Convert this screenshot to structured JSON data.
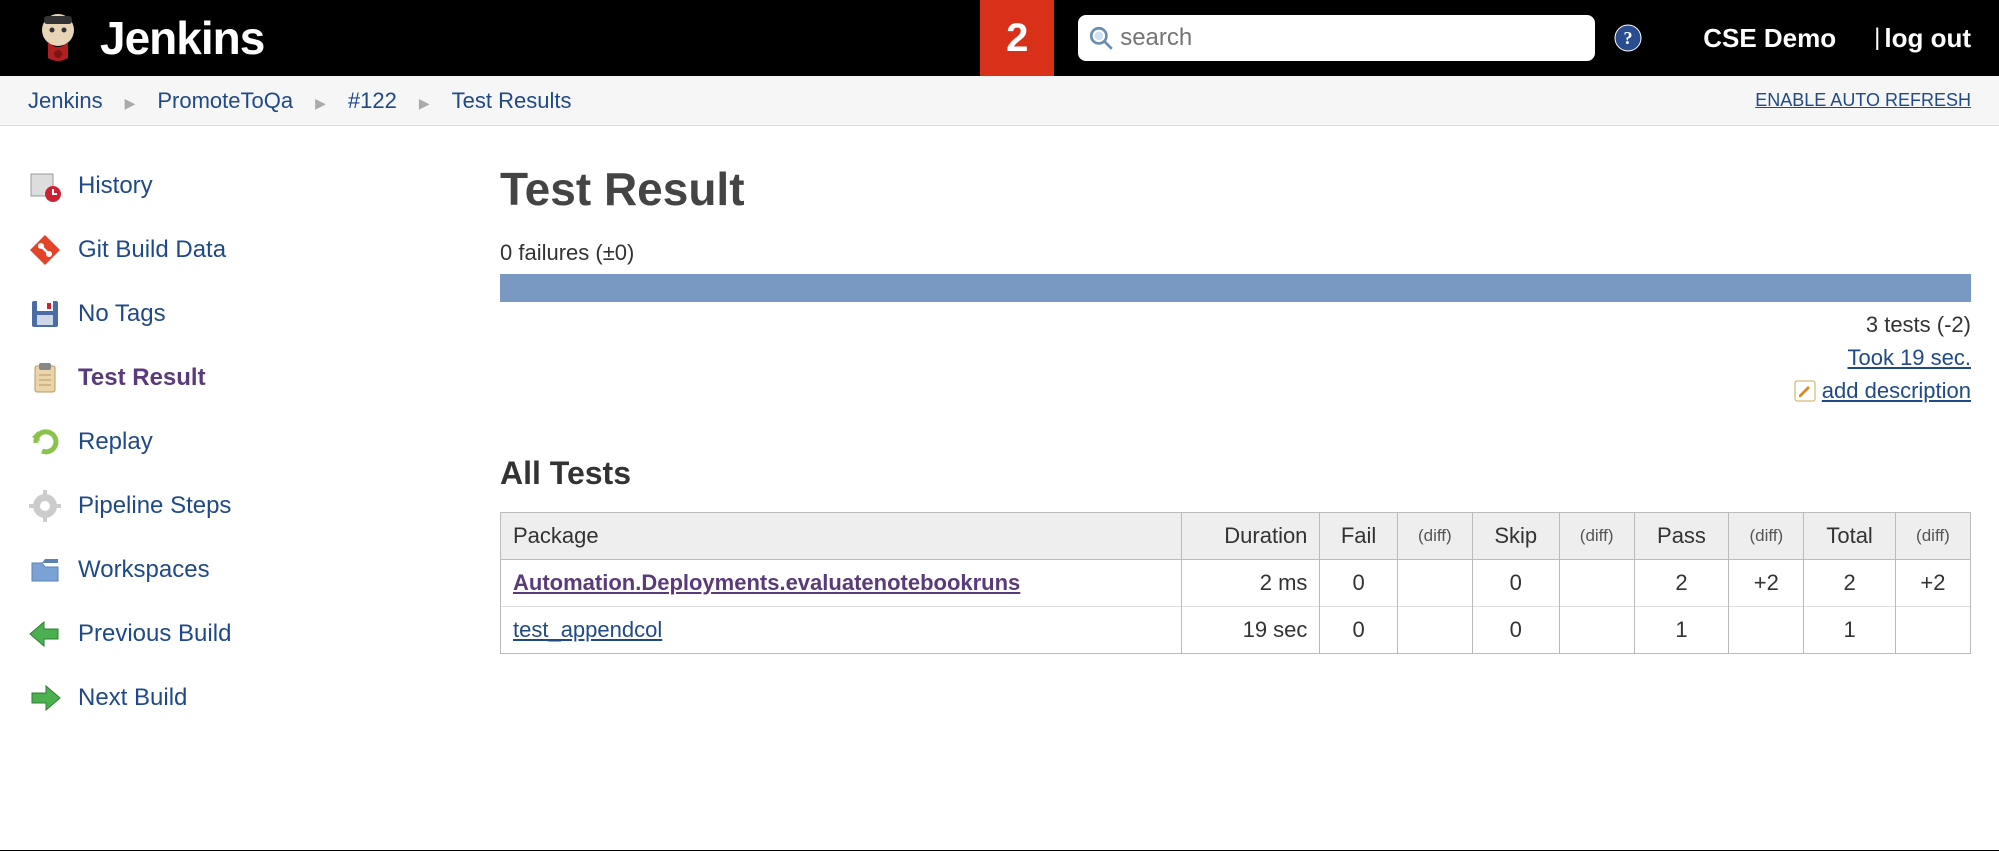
{
  "header": {
    "logo_text": "Jenkins",
    "notification_count": "2",
    "search_placeholder": "search",
    "user": "CSE Demo",
    "logout_label": "log out",
    "separator": "|"
  },
  "breadcrumbs": {
    "items": [
      "Jenkins",
      "PromoteToQa",
      "#122",
      "Test Results"
    ],
    "auto_refresh_label": "ENABLE AUTO REFRESH"
  },
  "sidebar": {
    "items": [
      {
        "label": "History",
        "icon": "history-icon",
        "active": false
      },
      {
        "label": "Git Build Data",
        "icon": "git-icon",
        "active": false
      },
      {
        "label": "No Tags",
        "icon": "save-icon",
        "active": false
      },
      {
        "label": "Test Result",
        "icon": "clipboard-icon",
        "active": true
      },
      {
        "label": "Replay",
        "icon": "redo-icon",
        "active": false
      },
      {
        "label": "Pipeline Steps",
        "icon": "gear-icon",
        "active": false
      },
      {
        "label": "Workspaces",
        "icon": "folder-icon",
        "active": false
      },
      {
        "label": "Previous Build",
        "icon": "arrow-left-icon",
        "active": false
      },
      {
        "label": "Next Build",
        "icon": "arrow-right-icon",
        "active": false
      }
    ]
  },
  "content": {
    "title": "Test Result",
    "failures_text": "0 failures (±0)",
    "progress": {
      "pass_color": "#7a99c2",
      "pct": 100
    },
    "tests_summary": "3 tests (-2)",
    "took_text": "Took 19 sec.",
    "add_description_label": "add description",
    "section_title": "All Tests",
    "table": {
      "columns": [
        "Package",
        "Duration",
        "Fail",
        "(diff)",
        "Skip",
        "(diff)",
        "Pass",
        "(diff)",
        "Total",
        "(diff)"
      ],
      "rows": [
        {
          "package": "Automation.Deployments.evaluatenotebookruns",
          "visited": true,
          "duration": "2 ms",
          "fail": "0",
          "fail_diff": "",
          "skip": "0",
          "skip_diff": "",
          "pass": "2",
          "pass_diff": "+2",
          "total": "2",
          "total_diff": "+2"
        },
        {
          "package": "test_appendcol",
          "visited": false,
          "duration": "19 sec",
          "fail": "0",
          "fail_diff": "",
          "skip": "0",
          "skip_diff": "",
          "pass": "1",
          "pass_diff": "",
          "total": "1",
          "total_diff": ""
        }
      ]
    }
  },
  "colors": {
    "brand_blue": "#204A87",
    "visited": "#5a3b7a",
    "notif_red": "#d9301a",
    "bar": "#7a99c2"
  }
}
